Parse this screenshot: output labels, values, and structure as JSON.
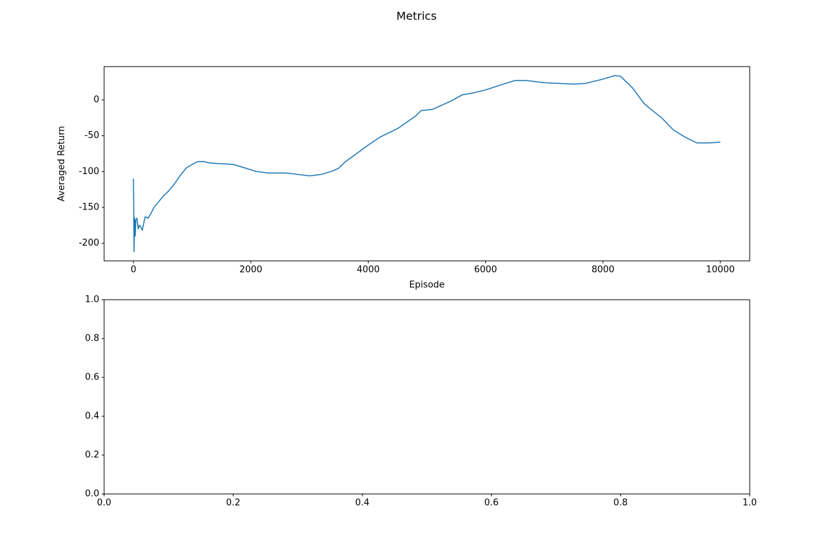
{
  "title": "Metrics",
  "chart_data": [
    {
      "type": "line",
      "xlabel": "Episode",
      "ylabel": "Averaged Return",
      "color": "#1f77b4",
      "x": [
        0,
        5,
        10,
        20,
        30,
        40,
        60,
        80,
        100,
        130,
        150,
        180,
        200,
        250,
        300,
        350,
        400,
        500,
        600,
        700,
        800,
        900,
        1000,
        1100,
        1200,
        1300,
        1500,
        1700,
        1900,
        2100,
        2300,
        2600,
        2800,
        3000,
        3200,
        3400,
        3500,
        3600,
        3800,
        4000,
        4200,
        4500,
        4800,
        4900,
        5100,
        5400,
        5600,
        5800,
        6000,
        6300,
        6500,
        6700,
        7000,
        7500,
        7700,
        8000,
        8200,
        8300,
        8500,
        8700,
        8800,
        9000,
        9200,
        9400,
        9600,
        9800,
        10000
      ],
      "values": [
        -110,
        -160,
        -212,
        -165,
        -190,
        -168,
        -165,
        -180,
        -175,
        -178,
        -182,
        -170,
        -163,
        -165,
        -158,
        -150,
        -145,
        -135,
        -127,
        -117,
        -105,
        -95,
        -90,
        -86,
        -86,
        -88,
        -89,
        -90,
        -95,
        -100,
        -102,
        -102,
        -104,
        -106,
        -104,
        -99,
        -95,
        -87,
        -75,
        -63,
        -52,
        -40,
        -23,
        -15,
        -13,
        -2,
        7,
        10,
        14,
        22,
        27,
        27,
        24,
        22,
        23,
        29,
        34,
        33,
        17,
        -5,
        -12,
        -25,
        -42,
        -52,
        -60,
        -60,
        -59
      ],
      "xlim": [
        -500,
        10500
      ],
      "ylim": [
        -224.6,
        46.5
      ],
      "xticks": [
        0,
        2000,
        4000,
        6000,
        8000,
        10000
      ],
      "yticks": [
        -200,
        -150,
        -100,
        -50,
        0
      ]
    },
    {
      "type": "line",
      "xlim": [
        0,
        1
      ],
      "ylim": [
        0,
        1
      ],
      "xticks": [
        {
          "value": 0,
          "label": "0.0"
        },
        0.2,
        0.4,
        0.6,
        0.8,
        {
          "value": 1,
          "label": "1.0"
        }
      ],
      "yticks": [
        {
          "value": 0,
          "label": "0.0"
        },
        0.2,
        0.4,
        0.6,
        0.8,
        {
          "value": 1,
          "label": "1.0"
        }
      ]
    }
  ]
}
